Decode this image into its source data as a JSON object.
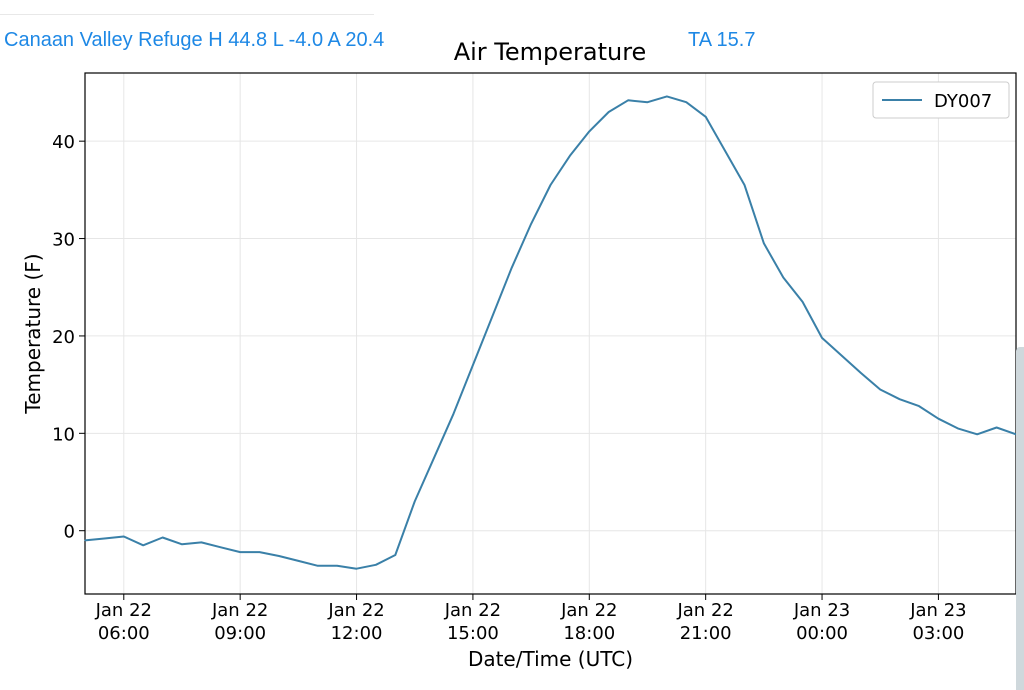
{
  "header": {
    "station_summary": "Canaan Valley Refuge H 44.8 L -4.0 A 20.4",
    "ta_label": "TA 15.7"
  },
  "colors": {
    "series_line": "#3a80a8",
    "header_link": "#1e88e5",
    "grid": "#e6e6e6"
  },
  "chart_data": {
    "type": "line",
    "title": "Air Temperature",
    "xlabel": "Date/Time (UTC)",
    "ylabel": "Temperature (F)",
    "x_unit": "hour",
    "xlim": [
      "2022-01-22 05:00",
      "2022-01-23 05:00"
    ],
    "ylim": [
      -6.5,
      47
    ],
    "grid": true,
    "legend_placement": "top-right",
    "x_ticks": [
      {
        "value": "2022-01-22 06:00",
        "label_top": "Jan 22",
        "label_bottom": "06:00"
      },
      {
        "value": "2022-01-22 09:00",
        "label_top": "Jan 22",
        "label_bottom": "09:00"
      },
      {
        "value": "2022-01-22 12:00",
        "label_top": "Jan 22",
        "label_bottom": "12:00"
      },
      {
        "value": "2022-01-22 15:00",
        "label_top": "Jan 22",
        "label_bottom": "15:00"
      },
      {
        "value": "2022-01-22 18:00",
        "label_top": "Jan 22",
        "label_bottom": "18:00"
      },
      {
        "value": "2022-01-22 21:00",
        "label_top": "Jan 22",
        "label_bottom": "21:00"
      },
      {
        "value": "2022-01-23 00:00",
        "label_top": "Jan 23",
        "label_bottom": "00:00"
      },
      {
        "value": "2022-01-23 03:00",
        "label_top": "Jan 23",
        "label_bottom": "03:00"
      }
    ],
    "y_ticks": [
      0,
      10,
      20,
      30,
      40
    ],
    "series": [
      {
        "name": "DY007",
        "color": "#3a80a8",
        "points": [
          [
            "2022-01-22 05:00",
            -1.0
          ],
          [
            "2022-01-22 05:30",
            -0.8
          ],
          [
            "2022-01-22 06:00",
            -0.6
          ],
          [
            "2022-01-22 06:30",
            -1.5
          ],
          [
            "2022-01-22 07:00",
            -0.7
          ],
          [
            "2022-01-22 07:30",
            -1.4
          ],
          [
            "2022-01-22 08:00",
            -1.2
          ],
          [
            "2022-01-22 08:30",
            -1.7
          ],
          [
            "2022-01-22 09:00",
            -2.2
          ],
          [
            "2022-01-22 09:30",
            -2.2
          ],
          [
            "2022-01-22 10:00",
            -2.6
          ],
          [
            "2022-01-22 10:30",
            -3.1
          ],
          [
            "2022-01-22 11:00",
            -3.6
          ],
          [
            "2022-01-22 11:30",
            -3.6
          ],
          [
            "2022-01-22 12:00",
            -3.9
          ],
          [
            "2022-01-22 12:30",
            -3.5
          ],
          [
            "2022-01-22 13:00",
            -2.5
          ],
          [
            "2022-01-22 13:30",
            3.0
          ],
          [
            "2022-01-22 14:00",
            7.5
          ],
          [
            "2022-01-22 14:30",
            12.0
          ],
          [
            "2022-01-22 15:00",
            17.0
          ],
          [
            "2022-01-22 15:30",
            22.0
          ],
          [
            "2022-01-22 16:00",
            27.0
          ],
          [
            "2022-01-22 16:30",
            31.5
          ],
          [
            "2022-01-22 17:00",
            35.5
          ],
          [
            "2022-01-22 17:30",
            38.5
          ],
          [
            "2022-01-22 18:00",
            41.0
          ],
          [
            "2022-01-22 18:30",
            43.0
          ],
          [
            "2022-01-22 19:00",
            44.2
          ],
          [
            "2022-01-22 19:30",
            44.0
          ],
          [
            "2022-01-22 20:00",
            44.6
          ],
          [
            "2022-01-22 20:30",
            44.0
          ],
          [
            "2022-01-22 21:00",
            42.5
          ],
          [
            "2022-01-22 21:30",
            39.0
          ],
          [
            "2022-01-22 22:00",
            35.5
          ],
          [
            "2022-01-22 22:30",
            29.5
          ],
          [
            "2022-01-22 23:00",
            26.0
          ],
          [
            "2022-01-22 23:30",
            23.5
          ],
          [
            "2022-01-23 00:00",
            19.8
          ],
          [
            "2022-01-23 00:30",
            18.0
          ],
          [
            "2022-01-23 01:00",
            16.2
          ],
          [
            "2022-01-23 01:30",
            14.5
          ],
          [
            "2022-01-23 02:00",
            13.5
          ],
          [
            "2022-01-23 02:30",
            12.8
          ],
          [
            "2022-01-23 03:00",
            11.5
          ],
          [
            "2022-01-23 03:30",
            10.5
          ],
          [
            "2022-01-23 04:00",
            9.9
          ],
          [
            "2022-01-23 04:30",
            10.6
          ],
          [
            "2022-01-23 05:00",
            9.9
          ]
        ]
      }
    ]
  }
}
